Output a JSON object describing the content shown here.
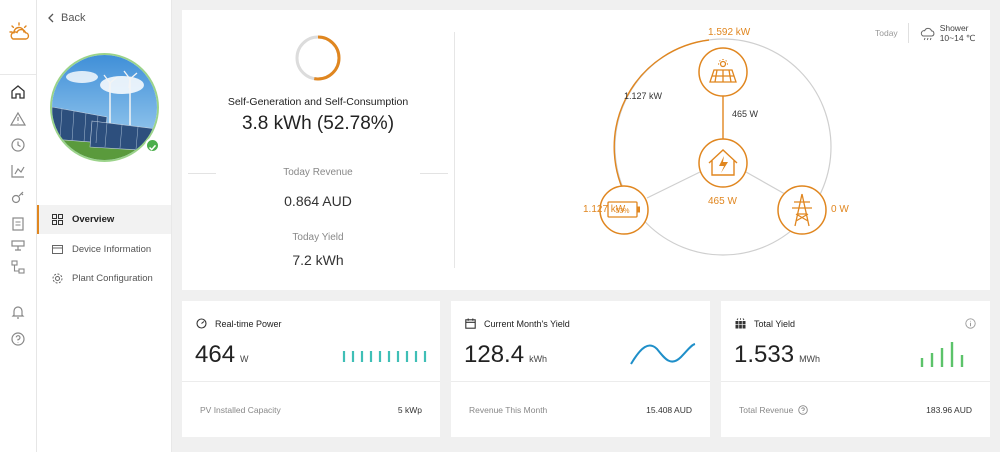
{
  "nav": {
    "back_label": "Back",
    "items": [
      {
        "label": "Overview",
        "active": true
      },
      {
        "label": "Device Information",
        "active": false
      },
      {
        "label": "Plant Configuration",
        "active": false
      }
    ]
  },
  "summary": {
    "self_gen_label": "Self-Generation and Self-Consumption",
    "self_gen_value": "3.8 kWh (52.78%)",
    "self_gen_percent": 52.78,
    "revenue_label": "Today Revenue",
    "revenue_value": "0.864 AUD",
    "yield_label": "Today Yield",
    "yield_value": "7.2 kWh"
  },
  "flow": {
    "pv_power": "1.592 kW",
    "pv_to_battery": "1.127 kW",
    "pv_to_home": "465 W",
    "battery_power": "1.127 kW",
    "battery_soc": "53%",
    "home_power": "465 W",
    "grid_power": "0 W"
  },
  "weather": {
    "period": "Today",
    "condition": "Shower",
    "temp_range": "10~14 ℃"
  },
  "cards": {
    "realtime": {
      "title": "Real-time Power",
      "value": "464",
      "unit": "W",
      "foot_label": "PV Installed Capacity",
      "foot_value": "5 kWp"
    },
    "month": {
      "title": "Current Month's Yield",
      "value": "128.4",
      "unit": "kWh",
      "foot_label": "Revenue This Month",
      "foot_value": "15.408 AUD"
    },
    "total": {
      "title": "Total Yield",
      "value": "1.533",
      "unit": "MWh",
      "foot_label": "Total Revenue",
      "foot_value": "183.96 AUD"
    }
  },
  "colors": {
    "accent": "#e0861f",
    "teal": "#3fbfb6",
    "green": "#5cc36a"
  }
}
